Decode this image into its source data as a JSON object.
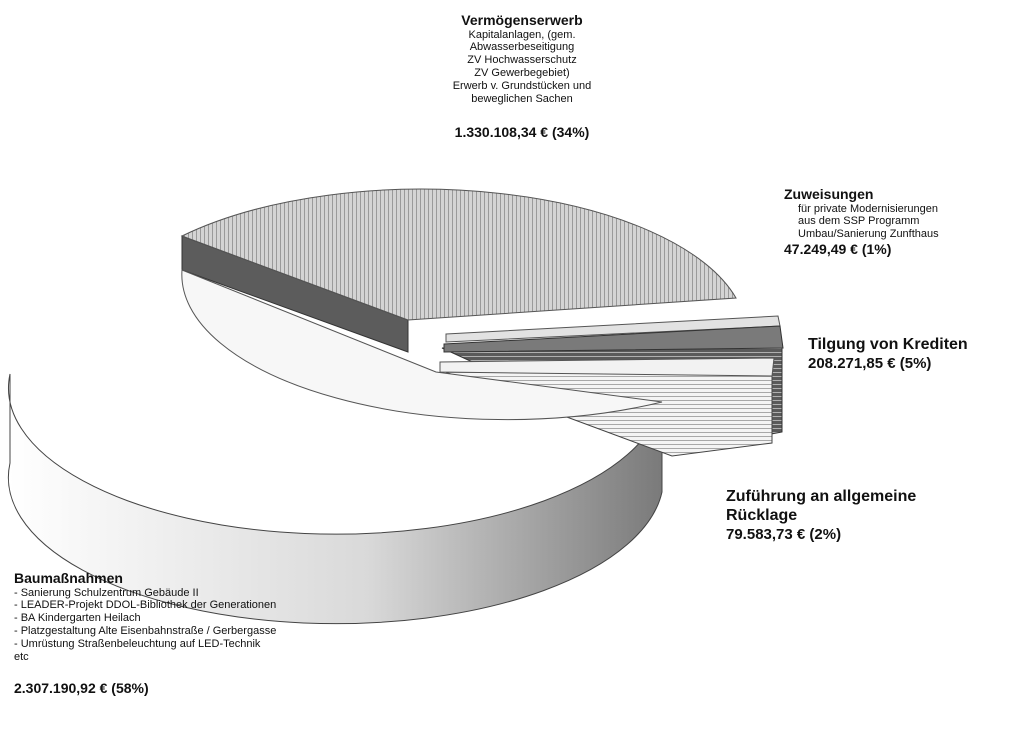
{
  "chart_data": {
    "type": "pie",
    "title": "",
    "slices": [
      {
        "key": "vermoegen",
        "title": "Vermögenserwerb",
        "details": [
          "Kapitalanlagen, (gem.",
          "Abwasserbeseitigung",
          "ZV Hochwasserschutz",
          "ZV Gewerbegebiet)",
          "Erwerb v. Grundstücken und",
          "beweglichen Sachen"
        ],
        "amount": "1.330.108,34 € (34%)",
        "value": 1330108.34,
        "percent": 34,
        "color": "#c8c8c8"
      },
      {
        "key": "zuweisungen",
        "title": "Zuweisungen",
        "details": [
          "für private Modernisierungen",
          "aus dem SSP Programm",
          "Umbau/Sanierung Zunfthaus"
        ],
        "amount": "47.249,49 € (1%)",
        "value": 47249.49,
        "percent": 1,
        "color": "#e6e6e6"
      },
      {
        "key": "tilgung",
        "title": "Tilgung von Krediten",
        "details": [],
        "amount": "208.271,85 € (5%)",
        "value": 208271.85,
        "percent": 5,
        "color": "#6e6e6e"
      },
      {
        "key": "zufuehrung",
        "title": "Zuführung an allgemeine Rücklage",
        "details": [],
        "amount": "79.583,73 € (2%)",
        "value": 79583.73,
        "percent": 2,
        "color": "#f2f2f2"
      },
      {
        "key": "bau",
        "title": "Baumaßnahmen",
        "details": [
          "- Sanierung Schulzentrum Gebäude II",
          "- LEADER-Projekt DDOL-Bibliothek der Generationen",
          "- BA Kindergarten Heilach",
          "- Platzgestaltung Alte Eisenbahnstraße / Gerbergasse",
          "- Umrüstung Straßenbeleuchtung auf LED-Technik",
          "etc"
        ],
        "amount": "2.307.190,92 € (58%)",
        "value": 2307190.92,
        "percent": 58,
        "color": "#f7f7f7"
      }
    ],
    "legend": "none"
  }
}
